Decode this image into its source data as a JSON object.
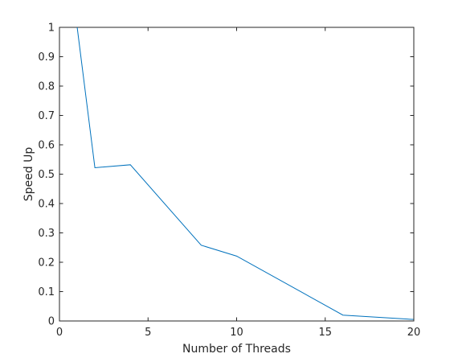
{
  "chart_data": {
    "type": "line",
    "title": "",
    "xlabel": "Number of Threads",
    "ylabel": "Speed Up",
    "xlim": [
      0,
      20
    ],
    "ylim": [
      0,
      1
    ],
    "xticks": [
      0,
      5,
      10,
      15,
      20
    ],
    "yticks": [
      0,
      0.1,
      0.2,
      0.3,
      0.4,
      0.5,
      0.6,
      0.7,
      0.8,
      0.9,
      1
    ],
    "xtick_labels": [
      "0",
      "5",
      "10",
      "15",
      "20"
    ],
    "ytick_labels": [
      "0",
      "0.1",
      "0.2",
      "0.3",
      "0.4",
      "0.5",
      "0.6",
      "0.7",
      "0.8",
      "0.9",
      "1"
    ],
    "grid": false,
    "box": true,
    "series": [
      {
        "color": "#0072BD",
        "x": [
          1,
          2,
          4,
          8,
          10,
          16,
          20
        ],
        "y": [
          1.0,
          0.522,
          0.532,
          0.258,
          0.221,
          0.02,
          0.005
        ]
      }
    ]
  }
}
